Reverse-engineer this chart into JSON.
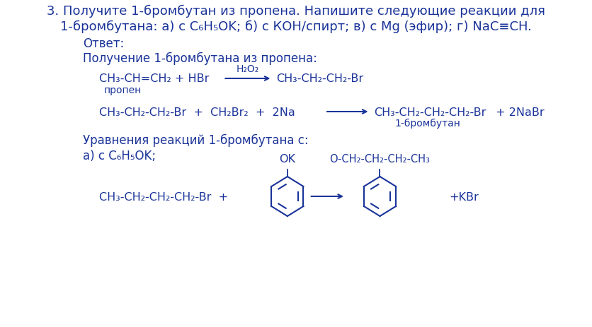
{
  "bg_color": "#ffffff",
  "text_color": "#1a3399",
  "title_line1": "3. Получите 1-бромбутан из пропена. Напишите следующие реакции для",
  "title_line2": "1-бромбутана: а) с C₆H₅OK; б) с КОН/спирт; в) с Mg (эфир); г) NaC≡CH.",
  "label_otvet": "Ответ:",
  "label_poluchenie": "Получение 1-бромбутана из пропена:",
  "reaction1_left": "CH₃-CH=CH₂ + HBr",
  "reaction1_above": "H₂O₂",
  "reaction1_right": "CH₃-CH₂-CH₂-Br",
  "reaction1_label": "пропен",
  "reaction2_left": "CH₃-CH₂-CH₂-Br  +  CH₂Br₂  +  2Na",
  "reaction2_right": "CH₃-CH₂-CH₂-CH₂-Br",
  "reaction2_right2": " + 2NaBr",
  "reaction2_label": "1-бромбутан",
  "label_uravneniya": "Уравнения реакций 1-бромбутана с:",
  "label_a": "а) с C₆H₅OK;",
  "reaction3_left": "CH₃-CH₂-CH₂-CH₂-Br  +",
  "reaction3_right": "+KBr",
  "benzene_ok_label": "OK",
  "product_label": "O-CH₂-CH₂-CH₂-CH₃",
  "font_size_title": 13,
  "font_size_body": 12,
  "font_size_chem": 11.5
}
